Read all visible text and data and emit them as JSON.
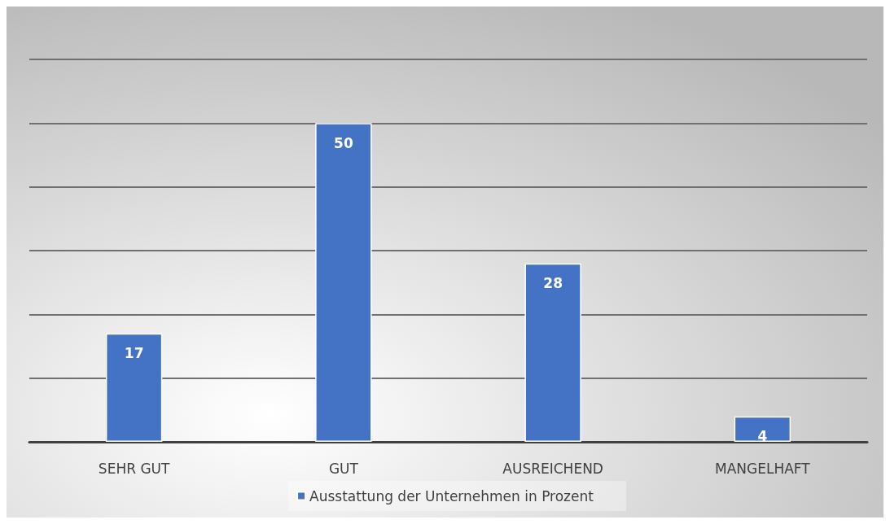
{
  "chart_data": {
    "type": "bar",
    "categories": [
      "SEHR GUT",
      "GUT",
      "AUSREICHEND",
      "MANGELHAFT"
    ],
    "series": [
      {
        "name": "Ausstattung der Unternehmen in Prozent",
        "color": "#4472c4",
        "values": [
          17,
          50,
          28,
          4
        ]
      }
    ],
    "ylim": [
      0,
      60
    ],
    "yticks": [
      {
        "value": 0,
        "label": null
      },
      {
        "value": 10,
        "label": null
      },
      {
        "value": 20,
        "label": null
      },
      {
        "value": 30,
        "label": null
      },
      {
        "value": 40,
        "label": null
      },
      {
        "value": 50,
        "label": null
      },
      {
        "value": 60,
        "label": null
      }
    ],
    "tick_labels": "x",
    "grid": "y",
    "legend": "bottom",
    "data_labels": true
  }
}
